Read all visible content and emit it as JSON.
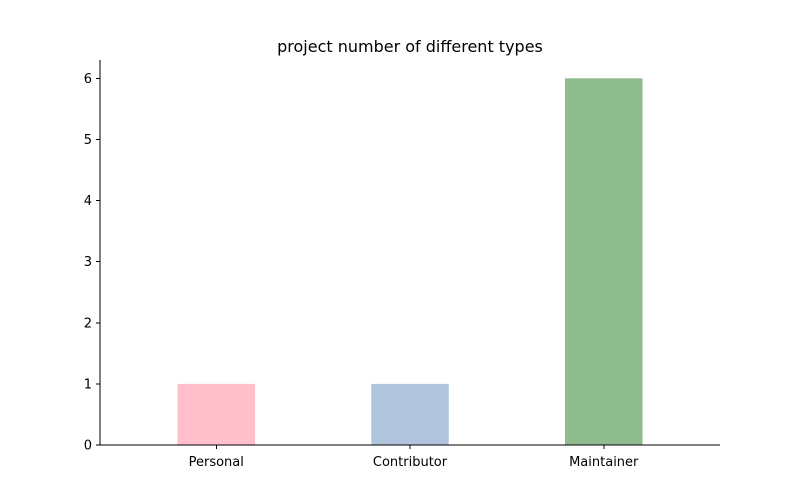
{
  "chart_data": {
    "type": "bar",
    "title": "project number of different types",
    "xlabel": "",
    "ylabel": "",
    "categories": [
      "Personal",
      "Contributor",
      "Maintainer"
    ],
    "values": [
      1,
      1,
      6
    ],
    "colors": [
      "#ffc0cb",
      "#b0c4de",
      "#8fbc8f"
    ],
    "ylim": [
      0,
      6.3
    ],
    "yticks": [
      0,
      1,
      2,
      3,
      4,
      5,
      6
    ],
    "grid": false,
    "legend": "none",
    "spines": [
      "left",
      "bottom"
    ]
  }
}
